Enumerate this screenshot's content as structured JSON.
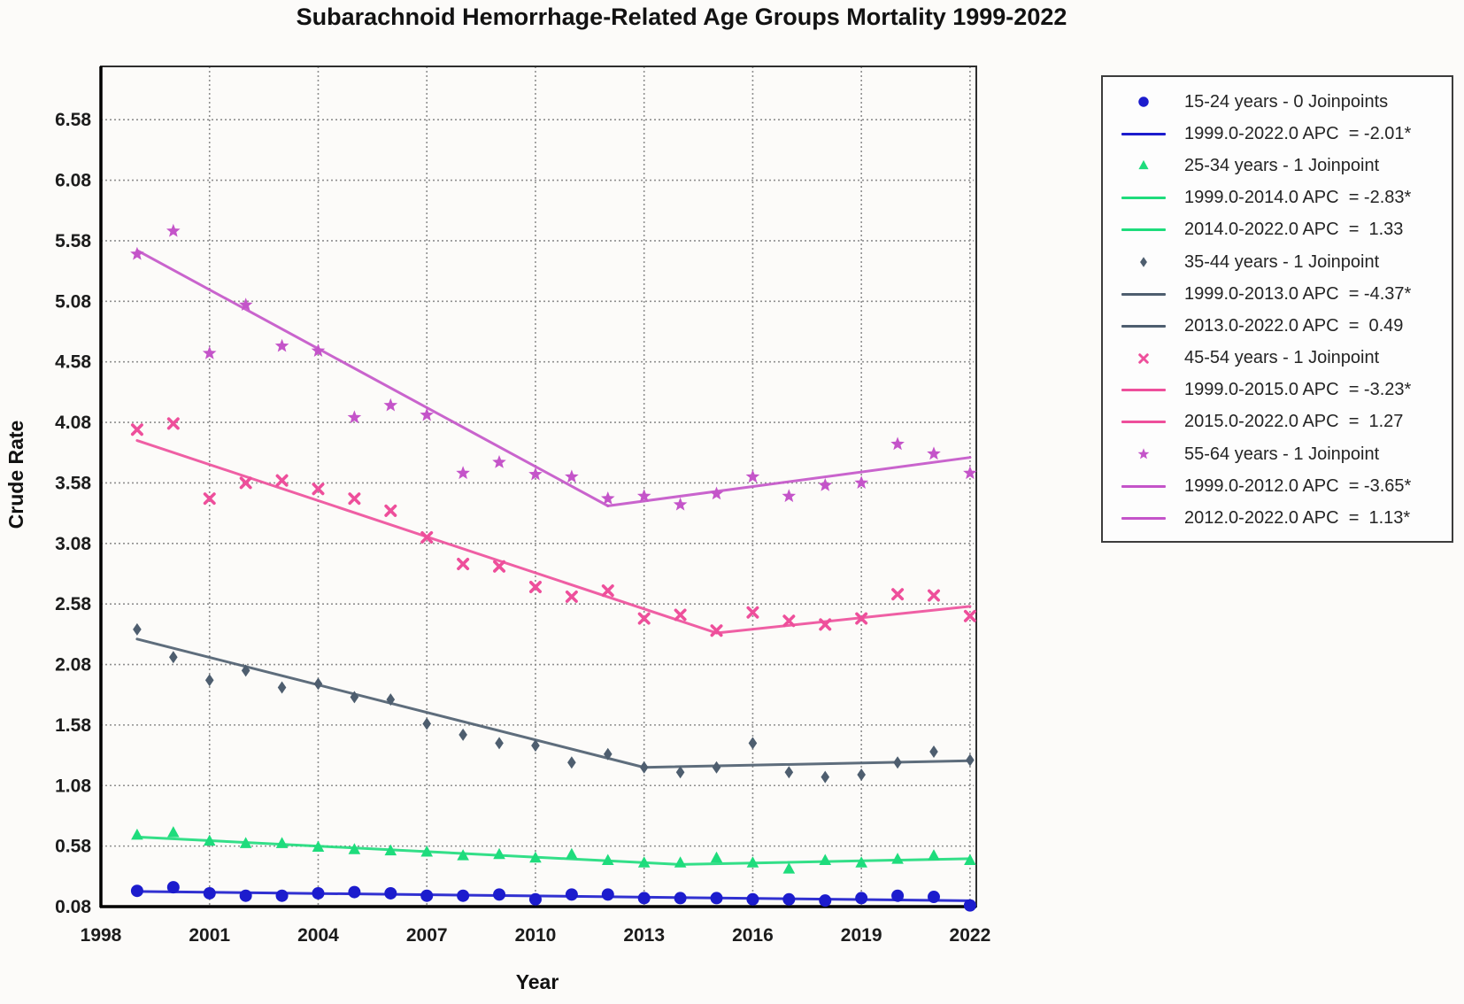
{
  "title": "Subarachnoid Hemorrhage-Related Age Groups Mortality 1999-2022",
  "chart_data": {
    "type": "scatter",
    "title": "Subarachnoid Hemorrhage-Related Age Groups Mortality 1999-2022",
    "xlabel": "Year",
    "ylabel": "Crude Rate",
    "xlim": [
      1998,
      2022.1
    ],
    "ylim": [
      0.08,
      7.02
    ],
    "x_ticks": [
      1998,
      2001,
      2004,
      2007,
      2010,
      2013,
      2016,
      2019,
      2022
    ],
    "y_ticks": [
      0.08,
      0.58,
      1.08,
      1.58,
      2.08,
      2.58,
      3.08,
      3.58,
      4.08,
      4.58,
      5.08,
      5.58,
      6.08,
      6.58
    ],
    "grid": "dotted",
    "legend_position": "outside-right",
    "years": [
      1999,
      2000,
      2001,
      2002,
      2003,
      2004,
      2005,
      2006,
      2007,
      2008,
      2009,
      2010,
      2011,
      2012,
      2013,
      2014,
      2015,
      2016,
      2017,
      2018,
      2019,
      2020,
      2021,
      2022
    ],
    "series": [
      {
        "name": "15-24 years - 0 Joinpoints",
        "marker": "circle",
        "color": "#1c1ccd",
        "values": [
          0.21,
          0.24,
          0.19,
          0.17,
          0.17,
          0.19,
          0.2,
          0.19,
          0.17,
          0.17,
          0.18,
          0.14,
          0.18,
          0.18,
          0.15,
          0.15,
          0.15,
          0.14,
          0.14,
          0.13,
          0.15,
          0.17,
          0.16,
          0.09
        ],
        "trend_segments": [
          {
            "label": "1999.0-2022.0 APC  = -2.01*",
            "x": [
              1999,
              2022
            ],
            "y": [
              0.205,
              0.128
            ]
          }
        ]
      },
      {
        "name": "25-34 years - 1 Joinpoint",
        "marker": "triangle",
        "color": "#1edc7c",
        "values": [
          0.67,
          0.69,
          0.62,
          0.6,
          0.6,
          0.57,
          0.55,
          0.54,
          0.53,
          0.5,
          0.51,
          0.48,
          0.51,
          0.46,
          0.44,
          0.44,
          0.48,
          0.44,
          0.39,
          0.46,
          0.44,
          0.47,
          0.5,
          0.46
        ],
        "trend_segments": [
          {
            "label": "1999.0-2014.0 APC  = -2.83*",
            "x": [
              1999,
              2014
            ],
            "y": [
              0.655,
              0.428
            ]
          },
          {
            "label": "2014.0-2022.0 APC  =  1.33",
            "x": [
              2014,
              2022
            ],
            "y": [
              0.428,
              0.476
            ]
          }
        ]
      },
      {
        "name": "35-44 years - 1 Joinpoint",
        "marker": "diamond",
        "color": "#4e5e6f",
        "values": [
          2.37,
          2.14,
          1.95,
          2.03,
          1.89,
          1.92,
          1.81,
          1.79,
          1.59,
          1.5,
          1.43,
          1.41,
          1.27,
          1.34,
          1.23,
          1.19,
          1.23,
          1.43,
          1.19,
          1.15,
          1.17,
          1.27,
          1.36,
          1.29
        ],
        "trend_segments": [
          {
            "label": "1999.0-2013.0 APC  = -4.37*",
            "x": [
              1999,
              2013
            ],
            "y": [
              2.29,
              1.23
            ]
          },
          {
            "label": "2013.0-2022.0 APC  =  0.49",
            "x": [
              2013,
              2022
            ],
            "y": [
              1.23,
              1.285
            ]
          }
        ]
      },
      {
        "name": "45-54 years - 1 Joinpoint",
        "marker": "xcross",
        "color": "#ee4f9b",
        "values": [
          4.02,
          4.07,
          3.45,
          3.58,
          3.6,
          3.53,
          3.45,
          3.35,
          3.13,
          2.91,
          2.89,
          2.72,
          2.64,
          2.69,
          2.46,
          2.49,
          2.36,
          2.51,
          2.44,
          2.41,
          2.46,
          2.66,
          2.65,
          2.48
        ],
        "trend_segments": [
          {
            "label": "1999.0-2015.0 APC  = -3.23*",
            "x": [
              1999,
              2015
            ],
            "y": [
              3.93,
              2.34
            ]
          },
          {
            "label": "2015.0-2022.0 APC  =  1.27",
            "x": [
              2015,
              2022
            ],
            "y": [
              2.34,
              2.56
            ]
          }
        ]
      },
      {
        "name": "55-64 years - 1 Joinpoint",
        "marker": "star",
        "color": "#c454c9",
        "values": [
          5.47,
          5.66,
          4.65,
          5.05,
          4.71,
          4.67,
          4.12,
          4.22,
          4.14,
          3.66,
          3.75,
          3.65,
          3.63,
          3.45,
          3.47,
          3.4,
          3.49,
          3.63,
          3.47,
          3.56,
          3.58,
          3.9,
          3.82,
          3.66
        ],
        "trend_segments": [
          {
            "label": "1999.0-2012.0 APC  = -3.65*",
            "x": [
              1999,
              2012
            ],
            "y": [
              5.5,
              3.39
            ]
          },
          {
            "label": "2012.0-2022.0 APC  =  1.13*",
            "x": [
              2012,
              2022
            ],
            "y": [
              3.39,
              3.79
            ]
          }
        ]
      }
    ]
  }
}
